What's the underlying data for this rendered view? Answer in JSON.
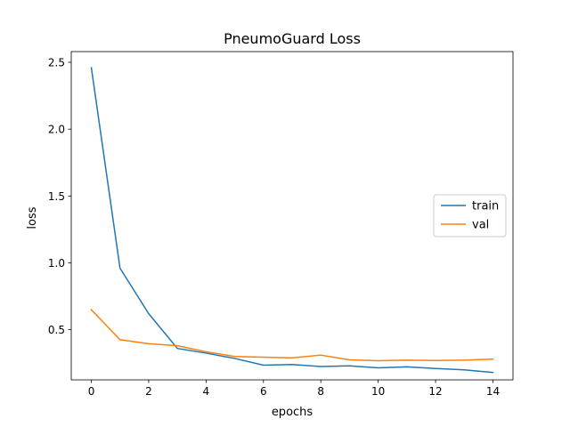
{
  "chart_data": {
    "type": "line",
    "title": "PneumoGuard Loss",
    "xlabel": "epochs",
    "ylabel": "loss",
    "x": [
      0,
      1,
      2,
      3,
      4,
      5,
      6,
      7,
      8,
      9,
      10,
      11,
      12,
      13,
      14
    ],
    "xlim": [
      -0.7,
      14.7
    ],
    "ylim": [
      0.125,
      2.58
    ],
    "xticks": [
      0,
      2,
      4,
      6,
      8,
      10,
      12,
      14
    ],
    "yticks": [
      0.5,
      1.0,
      1.5,
      2.0,
      2.5
    ],
    "xtick_labels": [
      "0",
      "2",
      "4",
      "6",
      "8",
      "10",
      "12",
      "14"
    ],
    "ytick_labels": [
      "0.5",
      "1.0",
      "1.5",
      "2.0",
      "2.5"
    ],
    "grid": false,
    "legend_position": "center-right",
    "series": [
      {
        "name": "train",
        "color": "#1f77b4",
        "values": [
          2.46,
          0.96,
          0.62,
          0.36,
          0.325,
          0.285,
          0.235,
          0.24,
          0.225,
          0.23,
          0.215,
          0.222,
          0.21,
          0.2,
          0.18
        ]
      },
      {
        "name": "val",
        "color": "#ff7f0e",
        "values": [
          0.65,
          0.425,
          0.395,
          0.38,
          0.335,
          0.3,
          0.295,
          0.29,
          0.31,
          0.275,
          0.268,
          0.272,
          0.27,
          0.272,
          0.28
        ]
      }
    ]
  }
}
